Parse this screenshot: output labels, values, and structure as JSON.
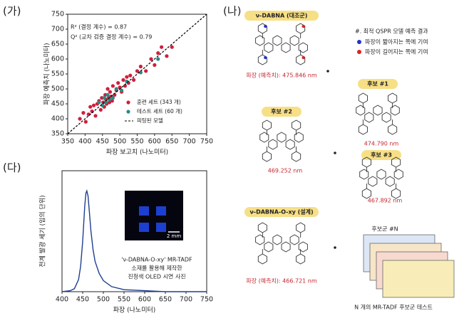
{
  "panels": {
    "a": "(가)",
    "b": "(나)",
    "c": "(다)"
  },
  "chart_data": [
    {
      "type": "scatter",
      "xlabel": "파장 보고치 (나노미터)",
      "ylabel": "파장 예측치 (나노미터)",
      "xlim": [
        350,
        750
      ],
      "ylim": [
        350,
        750
      ],
      "xticks": [
        350,
        400,
        450,
        500,
        550,
        600,
        650,
        700,
        750
      ],
      "yticks": [
        350,
        400,
        450,
        500,
        550,
        600,
        650,
        700,
        750
      ],
      "annotations": [
        "R² (결정 계수) = 0.87",
        "Q² (교차 검증 결정 계수) = 0.79"
      ],
      "series": [
        {
          "name": "훈련 세트 (343 개)",
          "color": "#cf1f3d",
          "x": [
            385,
            395,
            402,
            410,
            415,
            420,
            425,
            430,
            435,
            440,
            445,
            448,
            452,
            455,
            458,
            460,
            462,
            465,
            468,
            470,
            472,
            475,
            478,
            480,
            485,
            490,
            495,
            500,
            505,
            510,
            515,
            520,
            525,
            530,
            540,
            550,
            560,
            575,
            590,
            600,
            610,
            620,
            635,
            650
          ],
          "values": [
            400,
            420,
            390,
            415,
            440,
            425,
            445,
            410,
            450,
            460,
            430,
            470,
            455,
            440,
            480,
            465,
            450,
            500,
            470,
            455,
            490,
            475,
            460,
            510,
            480,
            495,
            520,
            505,
            490,
            530,
            510,
            540,
            520,
            545,
            530,
            560,
            575,
            560,
            600,
            580,
            620,
            640,
            610,
            640
          ]
        },
        {
          "name": "테스트 세트 (60 개)",
          "color": "#2a8a84",
          "x": [
            440,
            450,
            455,
            460,
            465,
            470,
            480,
            490,
            505,
            520,
            560,
            610
          ],
          "values": [
            455,
            445,
            470,
            455,
            480,
            465,
            470,
            500,
            495,
            525,
            555,
            600
          ]
        },
        {
          "name": "피팅된 모델",
          "type": "line",
          "color": "#000000",
          "x": [
            350,
            750
          ],
          "values": [
            350,
            750
          ]
        }
      ]
    },
    {
      "type": "line",
      "xlabel": "파장 (나노미터)",
      "ylabel": "전계 발광 세기 (임의 단위)",
      "xlim": [
        400,
        750
      ],
      "ylim": [
        0,
        1.2
      ],
      "xticks": [
        400,
        450,
        500,
        550,
        600,
        650,
        700,
        750
      ],
      "inset_text": [
        "'ν-DABNA-O-xy' MR-TADF",
        "소재를 활용해 제작한",
        "진청색 OLED 시연 사진"
      ],
      "scale_bar": "2 mm",
      "series": [
        {
          "color": "#1f3f8f",
          "x": [
            400,
            420,
            430,
            440,
            445,
            450,
            455,
            458,
            460,
            463,
            466,
            470,
            475,
            480,
            490,
            500,
            520,
            550,
            600,
            650,
            700,
            750
          ],
          "values": [
            0,
            0.01,
            0.03,
            0.12,
            0.25,
            0.5,
            0.85,
            0.98,
            1.0,
            0.95,
            0.8,
            0.6,
            0.42,
            0.3,
            0.18,
            0.11,
            0.05,
            0.02,
            0.01,
            0,
            0,
            0
          ]
        }
      ]
    }
  ],
  "design": {
    "reference": {
      "tag": "ν-DABNA (대조군)",
      "prediction": "파장 (예측치): 475.846 nm"
    },
    "legend": {
      "title": "#. 최적 QSPR 모델 예측 결과",
      "blue": "파장이 짧아지는 쪽에 기여",
      "red": "파장이 길어지는 쪽에 기여"
    },
    "candidates": [
      {
        "tag": "후보 #1",
        "prediction": "474.790 nm"
      },
      {
        "tag": "후보 #2",
        "prediction": "469.252 nm"
      },
      {
        "tag": "후보 #3",
        "prediction": "467.892 nm"
      }
    ],
    "designed": {
      "tag": "ν-DABNA-O-xy (설계)",
      "prediction": "파장 (예측치): 466.721 nm"
    },
    "pool": {
      "label": "후보군 #N",
      "caption": "N 개의 MR-TADF 후보군 테스트"
    }
  }
}
